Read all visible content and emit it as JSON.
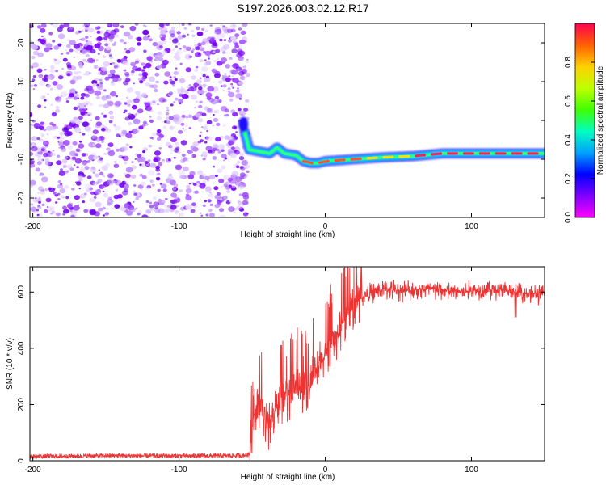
{
  "title": "S197.2026.003.02.12.R17",
  "chart_data": [
    {
      "type": "heatmap",
      "xlabel": "Height of straight line (km)",
      "ylabel": "Frequency (Hz)",
      "xlim": [
        -202,
        150
      ],
      "ylim": [
        -25,
        25
      ],
      "xticks": [
        -200,
        -100,
        0,
        100
      ],
      "xtick_labels": [
        "-200",
        "-100",
        "0",
        "100"
      ],
      "yticks": [
        -20,
        -10,
        0,
        10,
        20
      ],
      "ytick_labels": [
        "-20",
        "-10",
        "0",
        "10",
        "20"
      ],
      "noise_region_x": [
        -202,
        -55
      ],
      "trace_frequency_hz": [
        [
          -55,
          -3
        ],
        [
          -52,
          -7.5
        ],
        [
          -45,
          -8
        ],
        [
          -38,
          -8.5
        ],
        [
          -33,
          -7
        ],
        [
          -28,
          -8.5
        ],
        [
          -20,
          -9
        ],
        [
          -15,
          -10.5
        ],
        [
          -10,
          -11
        ],
        [
          -5,
          -11
        ],
        [
          0,
          -10.5
        ],
        [
          20,
          -10
        ],
        [
          40,
          -9.5
        ],
        [
          60,
          -9.2
        ],
        [
          80,
          -8.5
        ],
        [
          100,
          -8.5
        ],
        [
          120,
          -8.5
        ],
        [
          150,
          -8.5
        ]
      ],
      "colorbar": {
        "label": "Normalized spectral amplitude",
        "range": [
          0,
          1
        ],
        "ticks": [
          0.0,
          0.2,
          0.4,
          0.6,
          0.8
        ],
        "tick_labels": [
          "0.0",
          "0.2",
          "0.4",
          "0.6",
          "0.8"
        ],
        "colors": [
          "#ff00ff",
          "#8000ff",
          "#0000ff",
          "#00a0ff",
          "#00ffc0",
          "#40ff00",
          "#c0ff00",
          "#ffd000",
          "#ff6000",
          "#ff0050"
        ]
      }
    },
    {
      "type": "line",
      "xlabel": "Height of straight line (km)",
      "ylabel": "SNR (10 * v/v)",
      "xlim": [
        -202,
        150
      ],
      "ylim": [
        0,
        690
      ],
      "xticks": [
        -200,
        -100,
        0,
        100
      ],
      "xtick_labels": [
        "-200",
        "-100",
        "0",
        "100"
      ],
      "yticks": [
        0,
        200,
        400,
        600
      ],
      "ytick_labels": [
        "0",
        "200",
        "400",
        "600"
      ],
      "color": "#ee3333",
      "series": [
        {
          "name": "SNR",
          "x": [
            -202,
            -150,
            -100,
            -60,
            -52,
            -48,
            -45,
            -42,
            -38,
            -30,
            -20,
            -15,
            -10,
            -5,
            0,
            5,
            10,
            15,
            20,
            25,
            30,
            40,
            50,
            70,
            90,
            110,
            130,
            150
          ],
          "values": [
            15,
            18,
            17,
            18,
            22,
            190,
            210,
            150,
            140,
            220,
            260,
            240,
            280,
            320,
            380,
            420,
            470,
            510,
            550,
            580,
            595,
            610,
            605,
            610,
            600,
            610,
            600,
            590
          ]
        }
      ]
    }
  ]
}
